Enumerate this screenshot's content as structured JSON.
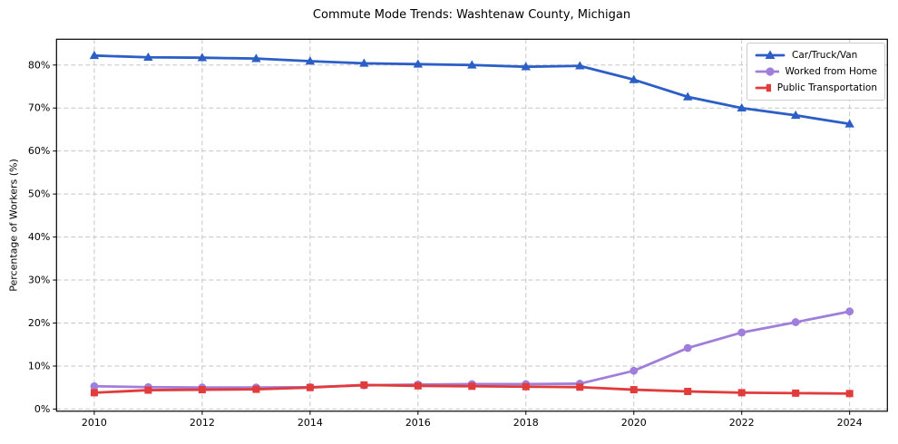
{
  "title": "Commute Mode Trends: Washtenaw County, Michigan",
  "chart_data": {
    "type": "line",
    "title": "Commute Mode Trends: Washtenaw County, Michigan",
    "xlabel": "",
    "ylabel": "Percentage of Workers (%)",
    "x": [
      2010,
      2011,
      2012,
      2013,
      2014,
      2015,
      2016,
      2017,
      2018,
      2019,
      2020,
      2021,
      2022,
      2023,
      2024
    ],
    "xlim": [
      2009.3,
      2024.7
    ],
    "ylim": [
      -0.5,
      86
    ],
    "grid": true,
    "legend_position": "upper right",
    "x_ticks": [
      {
        "value": 2010,
        "label": "2010"
      },
      {
        "value": 2012,
        "label": "2012"
      },
      {
        "value": 2014,
        "label": "2014"
      },
      {
        "value": 2016,
        "label": "2016"
      },
      {
        "value": 2018,
        "label": "2018"
      },
      {
        "value": 2020,
        "label": "2020"
      },
      {
        "value": 2022,
        "label": "2022"
      },
      {
        "value": 2024,
        "label": "2024"
      }
    ],
    "y_ticks": [
      {
        "value": 0,
        "label": "0%"
      },
      {
        "value": 10,
        "label": "10%"
      },
      {
        "value": 20,
        "label": "20%"
      },
      {
        "value": 30,
        "label": "30%"
      },
      {
        "value": 40,
        "label": "40%"
      },
      {
        "value": 50,
        "label": "50%"
      },
      {
        "value": 60,
        "label": "60%"
      },
      {
        "value": 70,
        "label": "70%"
      },
      {
        "value": 80,
        "label": "80%"
      }
    ],
    "series": [
      {
        "name": "Car/Truck/Van",
        "color": "#2b5fc7",
        "marker": "triangle",
        "values": [
          82.2,
          81.8,
          81.7,
          81.5,
          80.9,
          80.4,
          80.2,
          80.0,
          79.6,
          79.8,
          76.6,
          72.6,
          70.0,
          68.3,
          66.3
        ]
      },
      {
        "name": "Worked from Home",
        "color": "#a07edb",
        "marker": "circle",
        "values": [
          5.3,
          5.1,
          5.0,
          5.0,
          5.1,
          5.5,
          5.7,
          5.8,
          5.8,
          5.9,
          8.9,
          14.2,
          17.8,
          20.2,
          22.7
        ]
      },
      {
        "name": "Public Transportation",
        "color": "#e23b3b",
        "marker": "square",
        "values": [
          3.8,
          4.4,
          4.5,
          4.6,
          5.0,
          5.6,
          5.4,
          5.3,
          5.2,
          5.1,
          4.5,
          4.1,
          3.8,
          3.7,
          3.6
        ]
      }
    ],
    "colors": {
      "grid": "#c6c6c6",
      "frame": "#000000",
      "background": "#ffffff"
    }
  }
}
